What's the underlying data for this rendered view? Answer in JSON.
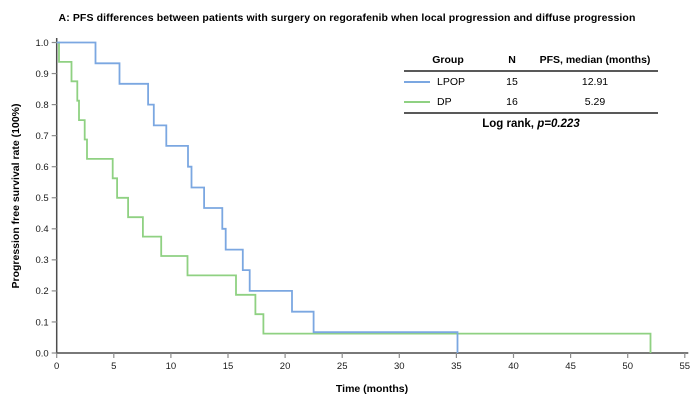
{
  "title": "A: PFS differences between patients with surgery on regorafenib when local progression and diffuse progression",
  "axes": {
    "x_label": "Time (months)",
    "y_label": "Progression free survival rate (100%)",
    "x_tick_labels": [
      "0",
      "5",
      "10",
      "15",
      "20",
      "25",
      "30",
      "35",
      "40",
      "45",
      "50",
      "55"
    ],
    "y_tick_labels": [
      "0.0",
      "0.1",
      "0.2",
      "0.3",
      "0.4",
      "0.5",
      "0.6",
      "0.7",
      "0.8",
      "0.9",
      "1.0"
    ]
  },
  "legend_table": {
    "headers": {
      "group": "Group",
      "n": "N",
      "median": "PFS, median (months)"
    },
    "rows": [
      {
        "group": "LPOP",
        "n": "15",
        "median": "12.91",
        "color": "#7BA7E1"
      },
      {
        "group": "DP",
        "n": "16",
        "median": "5.29",
        "color": "#8FD182"
      }
    ],
    "footer_prefix": "Log rank, ",
    "footer_p": "p=0.223"
  },
  "chart_data": {
    "type": "line",
    "subtype": "kaplan-meier-step",
    "title": "A: PFS differences between patients with surgery on regorafenib when local progression and diffuse progression",
    "xlabel": "Time (months)",
    "ylabel": "Progression free survival rate (100%)",
    "xlim": [
      0,
      55
    ],
    "ylim": [
      0,
      1.0
    ],
    "x_ticks": [
      0,
      5,
      10,
      15,
      20,
      25,
      30,
      35,
      40,
      45,
      50,
      55
    ],
    "y_ticks": [
      0,
      0.1,
      0.2,
      0.3,
      0.4,
      0.5,
      0.6,
      0.7,
      0.8,
      0.9,
      1.0
    ],
    "grid": false,
    "legend_position": "top-right-table",
    "log_rank_p": 0.223,
    "series": [
      {
        "name": "LPOP",
        "n": 15,
        "median_months": 12.91,
        "color": "#7BA7E1",
        "steps_time_survival": [
          [
            0,
            1.0
          ],
          [
            3.4,
            0.933
          ],
          [
            5.5,
            0.867
          ],
          [
            8.0,
            0.8
          ],
          [
            8.5,
            0.733
          ],
          [
            9.6,
            0.667
          ],
          [
            11.5,
            0.6
          ],
          [
            11.8,
            0.533
          ],
          [
            12.91,
            0.467
          ],
          [
            14.5,
            0.4
          ],
          [
            14.8,
            0.333
          ],
          [
            16.3,
            0.267
          ],
          [
            16.9,
            0.2
          ],
          [
            20.6,
            0.133
          ],
          [
            22.5,
            0.067
          ],
          [
            35.1,
            0
          ]
        ]
      },
      {
        "name": "DP",
        "n": 16,
        "median_months": 5.29,
        "color": "#8FD182",
        "steps_time_survival": [
          [
            0,
            1.0
          ],
          [
            0.2,
            0.9375
          ],
          [
            1.3,
            0.875
          ],
          [
            1.8,
            0.8125
          ],
          [
            1.95,
            0.75
          ],
          [
            2.45,
            0.6875
          ],
          [
            2.65,
            0.625
          ],
          [
            4.9,
            0.5625
          ],
          [
            5.29,
            0.5
          ],
          [
            6.25,
            0.4375
          ],
          [
            7.55,
            0.375
          ],
          [
            9.15,
            0.3125
          ],
          [
            11.45,
            0.25
          ],
          [
            15.7,
            0.1875
          ],
          [
            17.4,
            0.125
          ],
          [
            18.1,
            0.0625
          ],
          [
            52.0,
            0
          ]
        ]
      }
    ]
  },
  "style": {
    "axis_color": "#4d4d4d",
    "tick_color": "#8c8c8c",
    "tick_label_color": "#1a1a1a"
  }
}
